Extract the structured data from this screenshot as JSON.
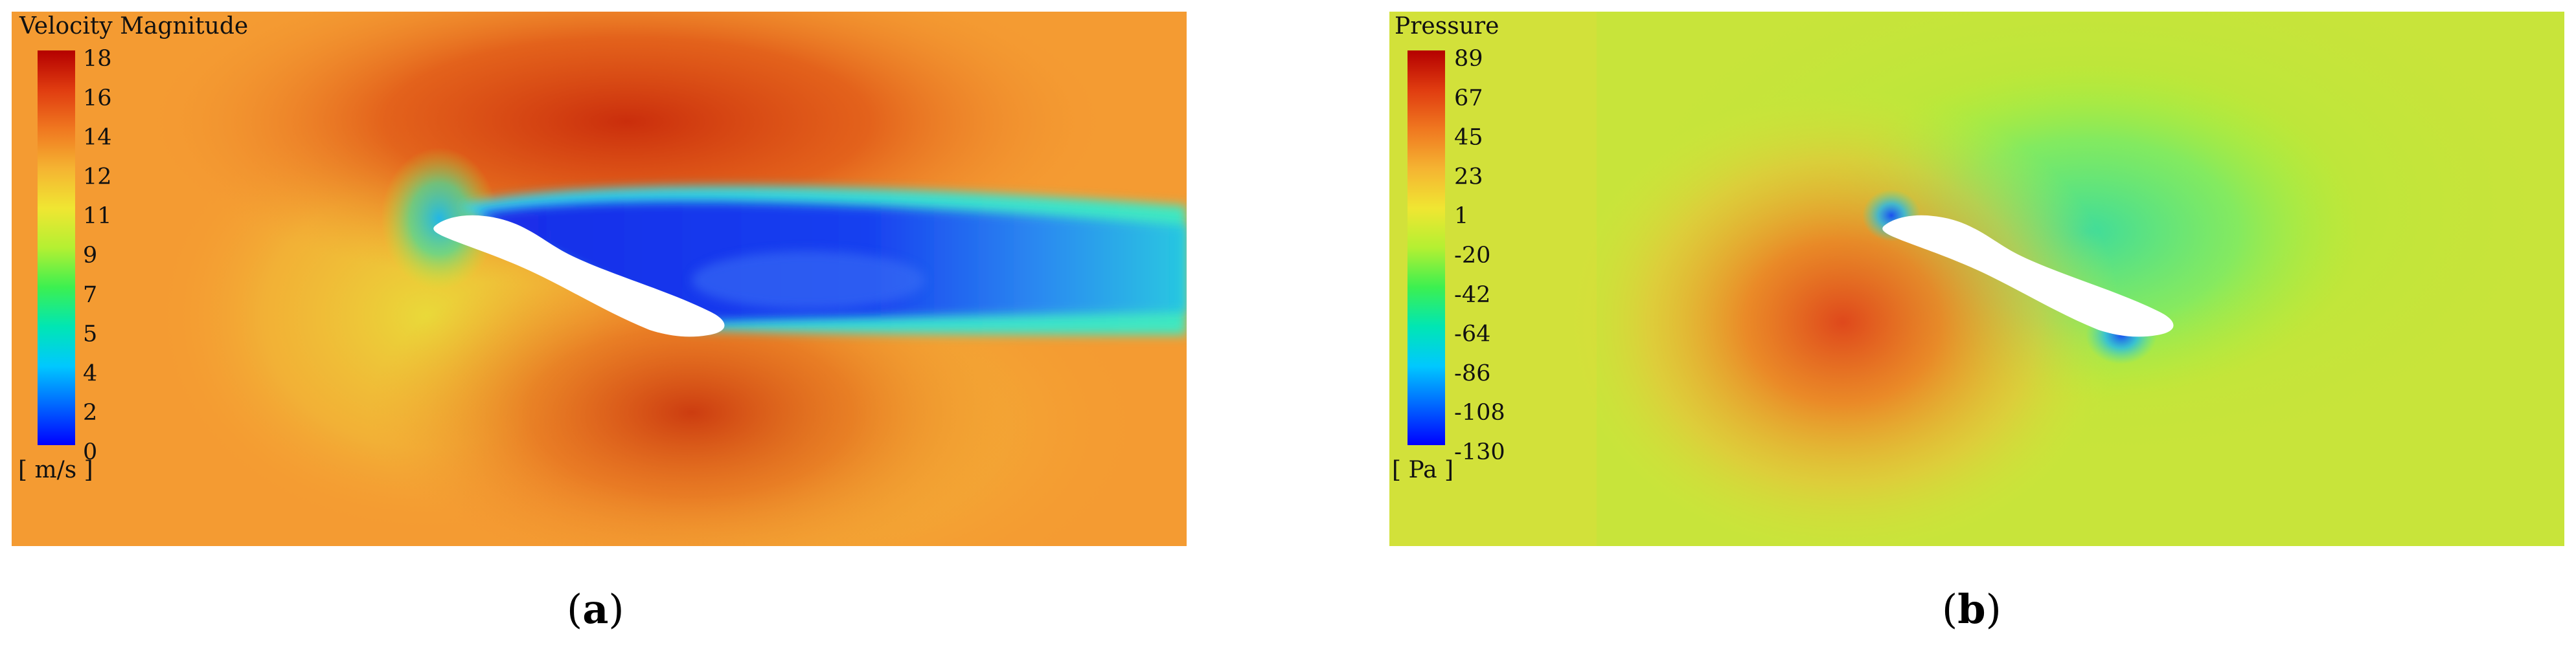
{
  "panels": [
    {
      "id": "a",
      "caption_letter": "a",
      "colorbar": {
        "title": "Velocity Magnitude",
        "unit": "[ m/s ]",
        "ticks": [
          "18",
          "16",
          "14",
          "12",
          "11",
          "9",
          "7",
          "5",
          "4",
          "2",
          "0"
        ]
      },
      "colors": {
        "background": "#F49B32",
        "wake": "#1E3FE6",
        "high": "#D8340E"
      }
    },
    {
      "id": "b",
      "caption_letter": "b",
      "colorbar": {
        "title": "Pressure",
        "unit": "[ Pa ]",
        "ticks": [
          "89",
          "67",
          "45",
          "23",
          "1",
          "-20",
          "-42",
          "-64",
          "-86",
          "-108",
          "-130"
        ]
      },
      "colors": {
        "background": "#C8E43A",
        "suction": "#3AD8A0",
        "high": "#E2551A"
      }
    }
  ],
  "colormap": [
    "#0000FF",
    "#0066FF",
    "#00C8FF",
    "#00E6B4",
    "#3CF050",
    "#B4F032",
    "#F0E632",
    "#F5B432",
    "#F07820",
    "#E03C10",
    "#B40000"
  ]
}
